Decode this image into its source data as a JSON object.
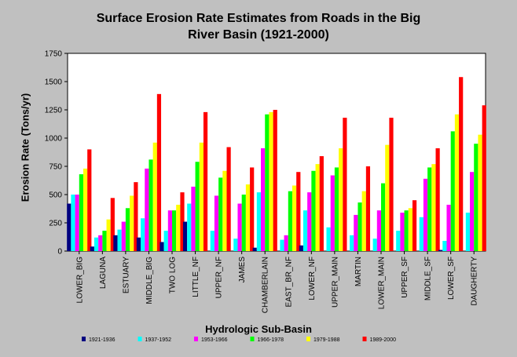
{
  "chart_data": {
    "type": "bar",
    "title_line1": "Surface Erosion Rate Estimates from Roads in the Big",
    "title_line2": "River Basin (1921-2000)",
    "xlabel": "Hydrologic Sub-Basin",
    "ylabel": "Erosion Rate (Tons/yr)",
    "ylim": [
      0,
      1750
    ],
    "yticks": [
      0,
      250,
      500,
      750,
      1000,
      1250,
      1500,
      1750
    ],
    "grid": false,
    "legend_position": "bottom",
    "categories": [
      "LOWER_BIG",
      "LAGUNA",
      "ESTUARY",
      "MIDDLE_BIG",
      "TWO LOG",
      "LITTLE_NF",
      "UPPER_NF",
      "JAMES",
      "CHAMBERLAIN",
      "EAST_BR_NF",
      "LOWER_NF",
      "UPPER_MAIN",
      "MARTIN",
      "LOWER_MAIN",
      "UPPER_SF",
      "MIDDLE_SF",
      "LOWER_SF",
      "DAUGHERTY"
    ],
    "series": [
      {
        "name": "1921-1936",
        "color": "#000080",
        "values": [
          420,
          40,
          140,
          120,
          80,
          260,
          0,
          0,
          30,
          0,
          50,
          0,
          0,
          0,
          0,
          0,
          10,
          0
        ]
      },
      {
        "name": "1937-1952",
        "color": "#00ffff",
        "values": [
          500,
          120,
          190,
          290,
          180,
          420,
          180,
          110,
          520,
          100,
          360,
          210,
          140,
          110,
          180,
          300,
          90,
          340
        ]
      },
      {
        "name": "1953-1966",
        "color": "#ff00ff",
        "values": [
          500,
          140,
          260,
          730,
          360,
          570,
          490,
          420,
          910,
          140,
          520,
          670,
          320,
          360,
          340,
          640,
          410,
          700
        ]
      },
      {
        "name": "1966-1978",
        "color": "#00ff00",
        "values": [
          680,
          180,
          380,
          810,
          360,
          790,
          650,
          500,
          1210,
          530,
          710,
          740,
          430,
          600,
          360,
          740,
          1060,
          950
        ]
      },
      {
        "name": "1979-1988",
        "color": "#ffff00",
        "values": [
          730,
          280,
          490,
          960,
          410,
          960,
          710,
          590,
          1230,
          580,
          770,
          910,
          530,
          940,
          380,
          770,
          1210,
          1030
        ]
      },
      {
        "name": "1989-2000",
        "color": "#ff0000",
        "values": [
          900,
          470,
          610,
          1390,
          520,
          1230,
          920,
          740,
          1250,
          700,
          840,
          1180,
          750,
          1180,
          450,
          910,
          1540,
          1290
        ]
      }
    ]
  }
}
